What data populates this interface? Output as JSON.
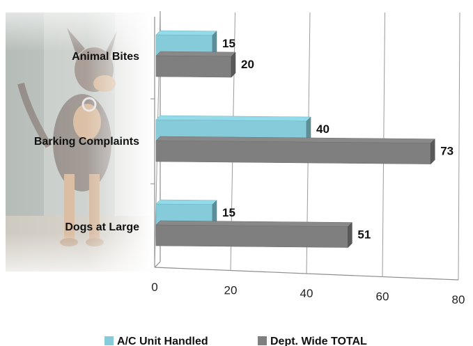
{
  "chart_data": {
    "type": "bar",
    "orientation": "horizontal",
    "style": "3d",
    "categories": [
      "Animal Bites",
      "Barking Complaints",
      "Dogs at Large"
    ],
    "series": [
      {
        "name": "A/C Unit Handled",
        "values": [
          15,
          40,
          15
        ],
        "color": "#86cbd9"
      },
      {
        "name": "Dept. Wide TOTAL",
        "values": [
          20,
          73,
          51
        ],
        "color": "#7f7f7f"
      }
    ],
    "x_ticks": [
      "0",
      "20",
      "40",
      "60",
      "80"
    ],
    "xlim": [
      0,
      80
    ],
    "grid": true,
    "legend_position": "bottom",
    "background_image": "faded-dog-photo"
  }
}
